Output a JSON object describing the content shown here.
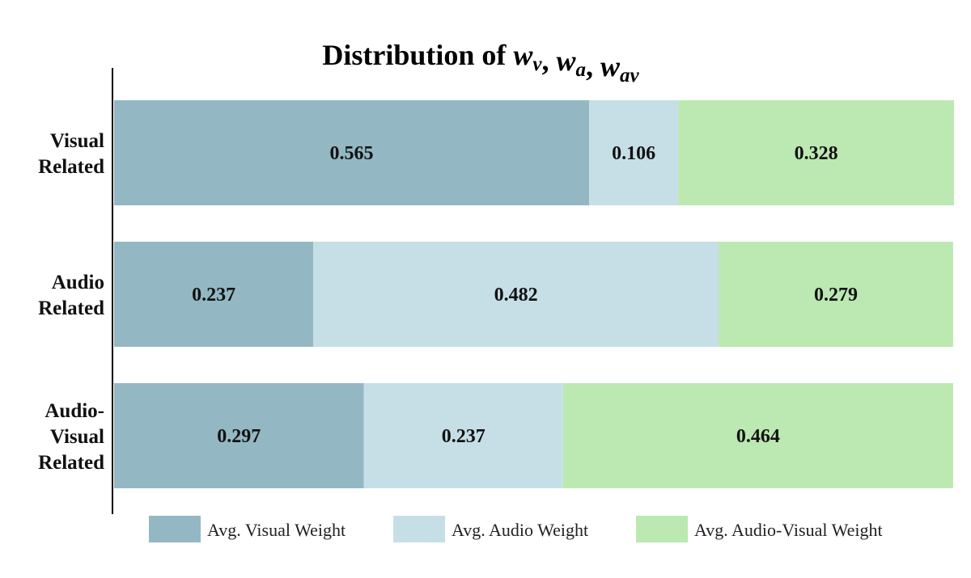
{
  "chart_data": {
    "type": "bar",
    "orientation": "horizontal",
    "stacked": true,
    "title": "Distribution of w_v, w_a, w_av",
    "title_parts": [
      {
        "text": "Distribution of ",
        "math": false
      },
      {
        "text": "w",
        "math": true,
        "sub": "v"
      },
      {
        "text": ", ",
        "math": false
      },
      {
        "text": "w",
        "math": true,
        "sub": "a"
      },
      {
        "text": ", ",
        "math": false
      },
      {
        "text": "w",
        "math": true,
        "sub": "av"
      }
    ],
    "xlabel": "",
    "ylabel": "",
    "categories": [
      [
        "Visual",
        "Related"
      ],
      [
        "Audio",
        "Related"
      ],
      [
        "Audio-",
        "Visual",
        "Related"
      ]
    ],
    "series": [
      {
        "name": "Avg. Visual Weight",
        "color": "#93b8c3",
        "values": [
          0.565,
          0.237,
          0.297
        ]
      },
      {
        "name": "Avg. Audio Weight",
        "color": "#c6dfe6",
        "values": [
          0.106,
          0.482,
          0.237
        ]
      },
      {
        "name": "Avg. Audio-Visual Weight",
        "color": "#bce8b1",
        "values": [
          0.328,
          0.279,
          0.464
        ]
      }
    ],
    "xlim": [
      0,
      1
    ],
    "grid": false,
    "legend_position": "bottom"
  }
}
